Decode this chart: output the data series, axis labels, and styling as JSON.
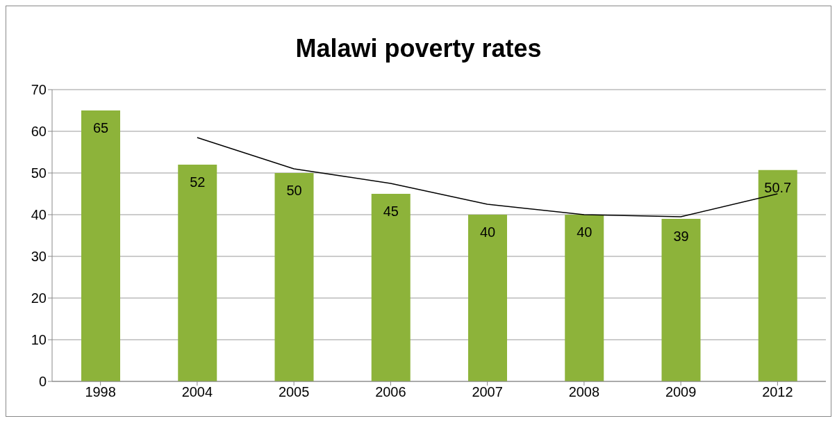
{
  "chart_data": {
    "type": "bar",
    "title": "Malawi poverty rates",
    "categories": [
      "1998",
      "2004",
      "2005",
      "2006",
      "2007",
      "2008",
      "2009",
      "2012"
    ],
    "series": [
      {
        "color": "#8db33a",
        "values": [
          65,
          52,
          50,
          45,
          40,
          40,
          39,
          50.7
        ],
        "value_labels": [
          "65",
          "52",
          "50",
          "45",
          "40",
          "40",
          "39",
          "50.7"
        ]
      },
      {
        "type": "line",
        "color": "#000000",
        "values": [
          null,
          58.5,
          51,
          47.5,
          42.5,
          40,
          39.5,
          45
        ]
      }
    ],
    "ylim": [
      0,
      70
    ],
    "yticks": [
      0,
      10,
      20,
      30,
      40,
      50,
      60,
      70
    ],
    "grid": "y",
    "legend": false,
    "marker": "none"
  }
}
